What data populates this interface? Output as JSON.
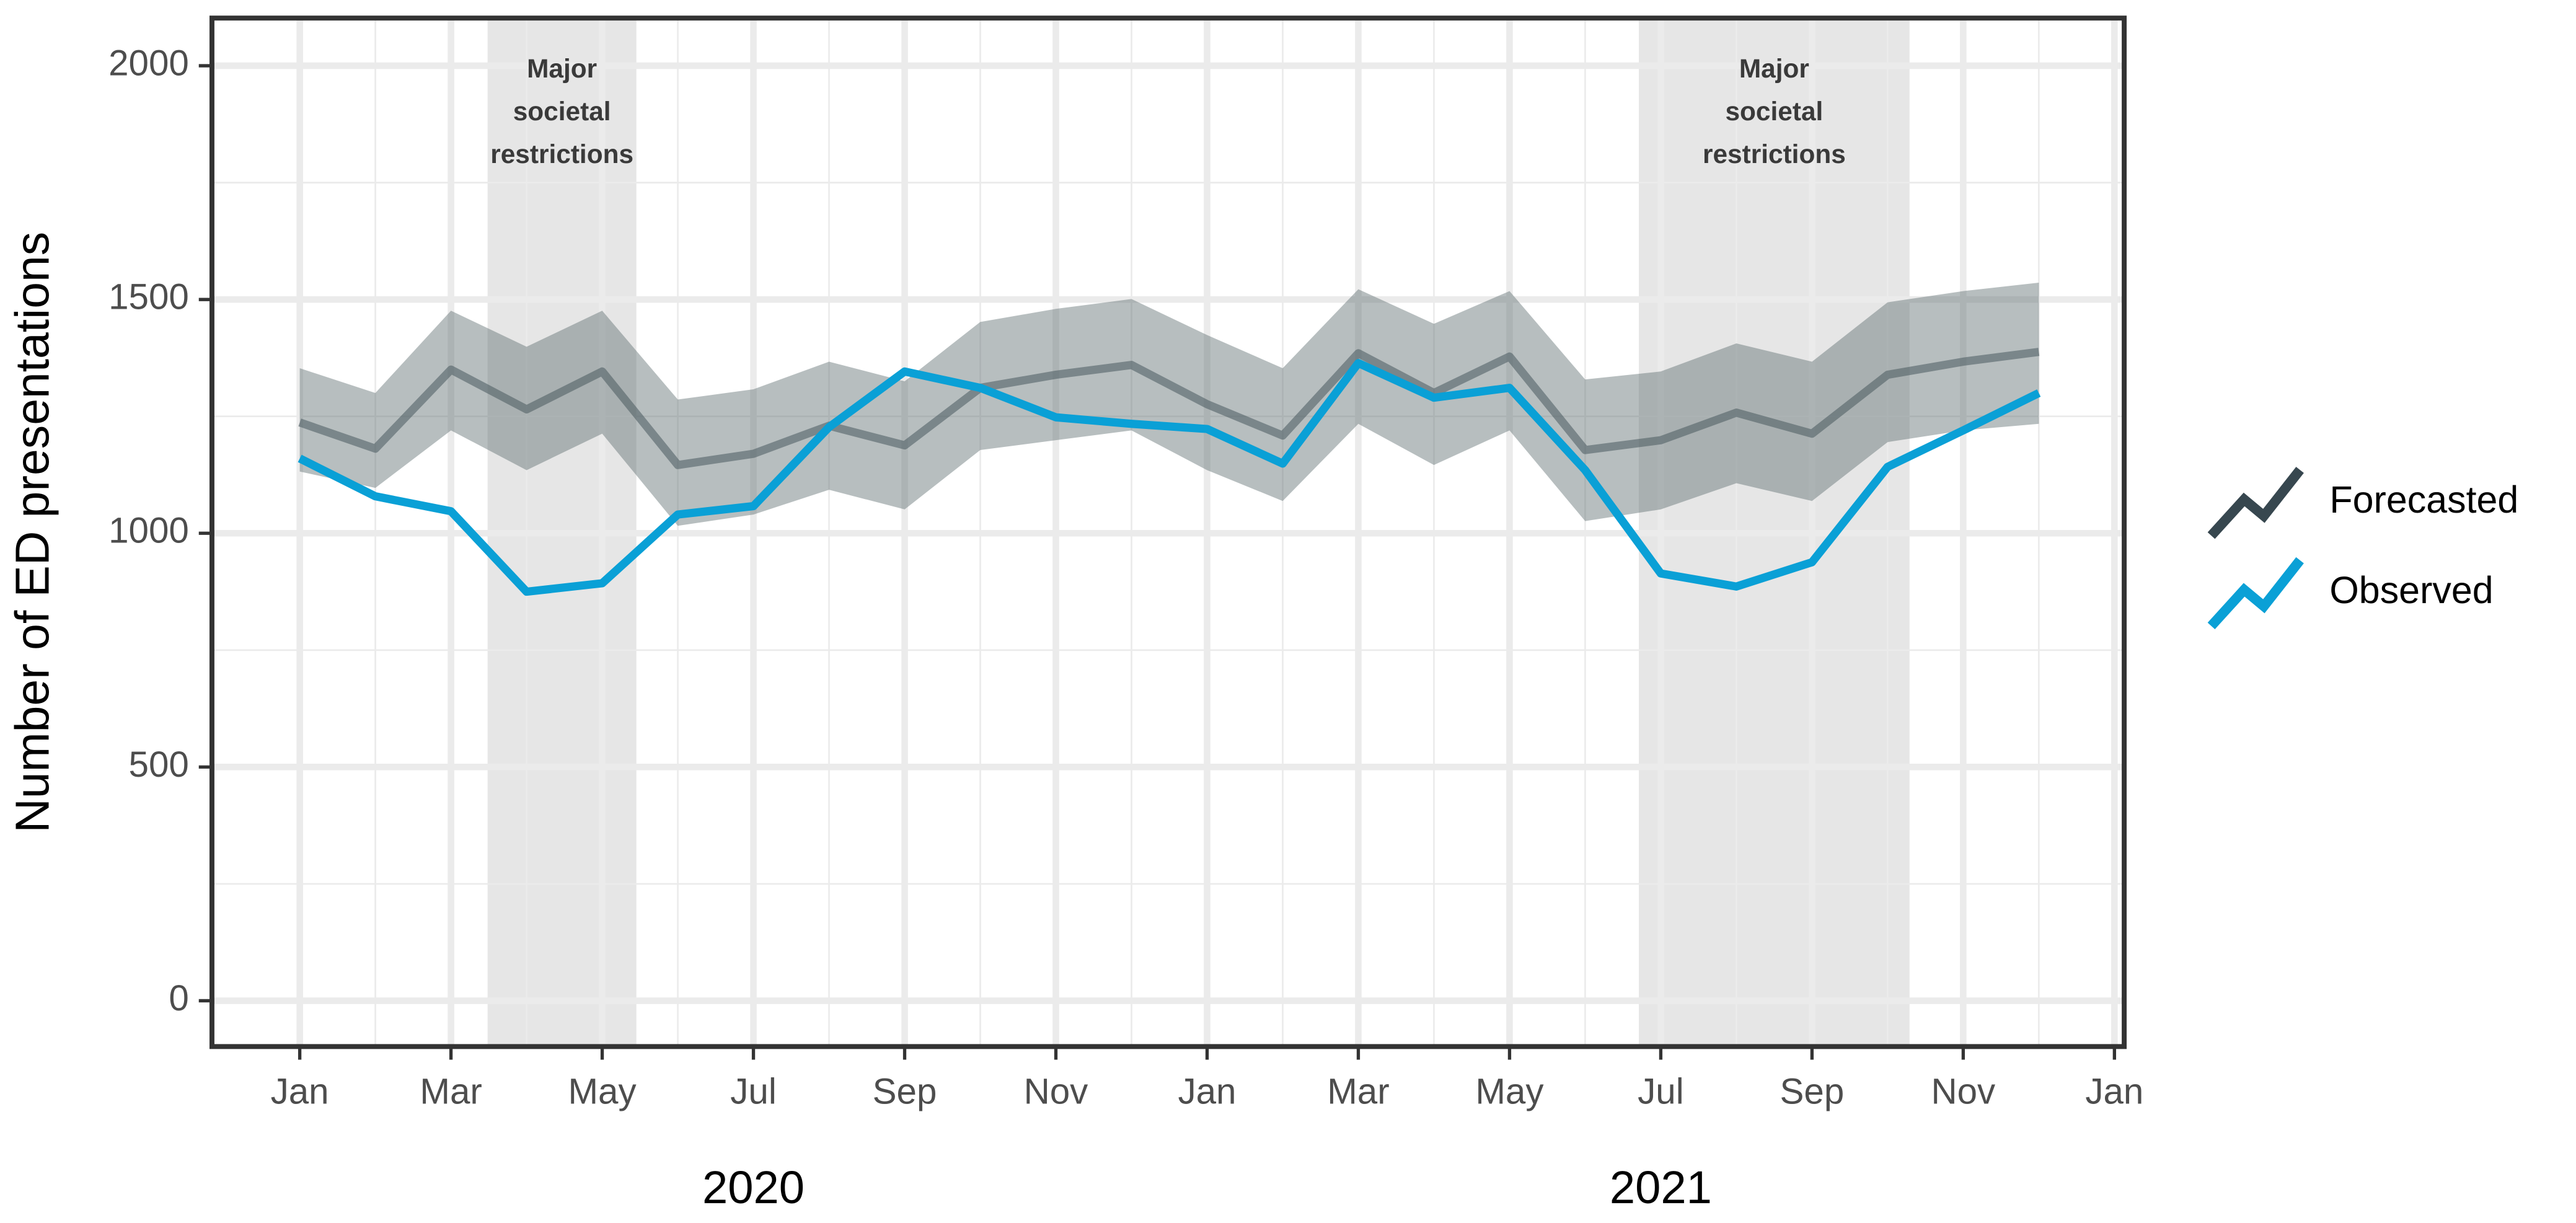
{
  "chart_data": {
    "type": "line",
    "y_label": "Number of ED presentations",
    "x": [
      "2020-01",
      "2020-02",
      "2020-03",
      "2020-04",
      "2020-05",
      "2020-06",
      "2020-07",
      "2020-08",
      "2020-09",
      "2020-10",
      "2020-11",
      "2020-12",
      "2021-01",
      "2021-02",
      "2021-03",
      "2021-04",
      "2021-05",
      "2021-06",
      "2021-07",
      "2021-08",
      "2021-09",
      "2021-10",
      "2021-11",
      "2021-12"
    ],
    "series": [
      {
        "name": "Forecasted",
        "color": "#37474f",
        "band_color": "#5f6e70",
        "values": [
          1237,
          1181,
          1350,
          1265,
          1346,
          1146,
          1170,
          1230,
          1188,
          1311,
          1339,
          1360,
          1276,
          1209,
          1385,
          1300,
          1378,
          1178,
          1199,
          1258,
          1213,
          1339,
          1367,
          1388
        ],
        "upper": [
          1353,
          1300,
          1476,
          1399,
          1476,
          1286,
          1308,
          1367,
          1325,
          1452,
          1480,
          1501,
          1424,
          1353,
          1522,
          1448,
          1518,
          1329,
          1346,
          1406,
          1367,
          1494,
          1518,
          1536
        ],
        "lower": [
          1132,
          1097,
          1220,
          1135,
          1213,
          1016,
          1040,
          1093,
          1051,
          1178,
          1199,
          1220,
          1135,
          1069,
          1234,
          1146,
          1220,
          1026,
          1051,
          1107,
          1069,
          1195,
          1220,
          1234
        ]
      },
      {
        "name": "Observed",
        "color": "#0aa0d6",
        "values": [
          1160,
          1079,
          1047,
          875,
          893,
          1040,
          1058,
          1227,
          1346,
          1311,
          1248,
          1234,
          1223,
          1149,
          1364,
          1290,
          1311,
          1135,
          914,
          886,
          938,
          1142,
          1220,
          1300
        ]
      }
    ],
    "shaded": [
      {
        "start": "2020-03-16",
        "end": "2020-05-15",
        "label_lines": [
          "Major",
          "societal",
          "restrictions"
        ]
      },
      {
        "start": "2021-06-23",
        "end": "2021-10-10",
        "label_lines": [
          "Major",
          "societal",
          "restrictions"
        ]
      }
    ],
    "xlim": [
      "2019-11-27",
      "2022-01-05"
    ],
    "xticks": [
      {
        "value": "2020-01",
        "label": "Jan"
      },
      {
        "value": "2020-03",
        "label": "Mar"
      },
      {
        "value": "2020-05",
        "label": "May"
      },
      {
        "value": "2020-07",
        "label": "Jul"
      },
      {
        "value": "2020-09",
        "label": "Sep"
      },
      {
        "value": "2020-11",
        "label": "Nov"
      },
      {
        "value": "2021-01",
        "label": "Jan"
      },
      {
        "value": "2021-03",
        "label": "Mar"
      },
      {
        "value": "2021-05",
        "label": "May"
      },
      {
        "value": "2021-07",
        "label": "Jul"
      },
      {
        "value": "2021-09",
        "label": "Sep"
      },
      {
        "value": "2021-11",
        "label": "Nov"
      },
      {
        "value": "2022-01",
        "label": "Jan"
      }
    ],
    "x_group_labels": [
      {
        "value": "2020-07",
        "label": "2020"
      },
      {
        "value": "2021-07",
        "label": "2021"
      }
    ],
    "ylim": [
      -98,
      2102
    ],
    "yticks": [
      0,
      500,
      1000,
      1500,
      2000
    ],
    "grid": true,
    "legend": "right"
  }
}
